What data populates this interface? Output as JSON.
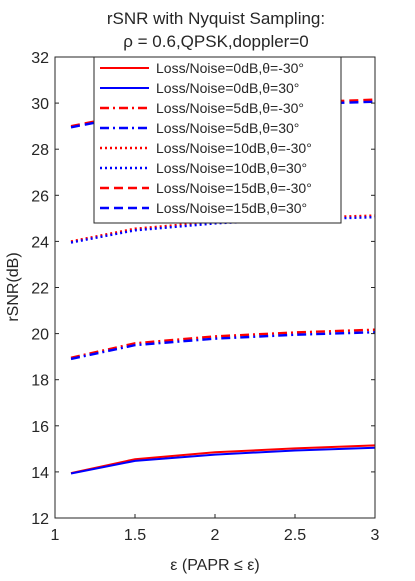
{
  "chart_data": {
    "type": "line",
    "title_lines": [
      "rSNR with Nyquist Sampling:",
      "ρ = 0.6,QPSK,doppler=0"
    ],
    "xlabel": "ε (PAPR ≤ ε)",
    "ylabel": "rSNR(dB)",
    "xlim": [
      1,
      3
    ],
    "ylim": [
      12,
      32
    ],
    "x_ticks": [
      1,
      1.5,
      2,
      2.5,
      3
    ],
    "x_tick_labels": [
      "1",
      "1.5",
      "2",
      "2.5",
      "3"
    ],
    "y_ticks": [
      12,
      14,
      16,
      18,
      20,
      22,
      24,
      26,
      28,
      30,
      32
    ],
    "y_tick_labels": [
      "12",
      "14",
      "16",
      "18",
      "20",
      "22",
      "24",
      "26",
      "28",
      "30",
      "32"
    ],
    "grid": false,
    "legend_position": "top-right",
    "x": [
      1.1,
      1.5,
      2,
      2.5,
      3
    ],
    "series": [
      {
        "name": "Loss/Noise=0dB,θ=-30°",
        "color": "#ff0000",
        "dash": "solid",
        "values": [
          13.95,
          14.55,
          14.85,
          15.02,
          15.15
        ]
      },
      {
        "name": "Loss/Noise=0dB,θ=30°",
        "color": "#0000ff",
        "dash": "solid",
        "values": [
          13.93,
          14.48,
          14.75,
          14.93,
          15.05
        ]
      },
      {
        "name": "Loss/Noise=5dB,θ=-30°",
        "color": "#ff0000",
        "dash": "dashdot",
        "values": [
          18.95,
          19.58,
          19.88,
          20.05,
          20.17
        ]
      },
      {
        "name": "Loss/Noise=5dB,θ=30°",
        "color": "#0000ff",
        "dash": "dashdot",
        "values": [
          18.9,
          19.5,
          19.78,
          19.95,
          20.06
        ]
      },
      {
        "name": "Loss/Noise=10dB,θ=-30°",
        "color": "#ff0000",
        "dash": "dotted",
        "values": [
          24.0,
          24.55,
          24.85,
          25.02,
          25.12
        ]
      },
      {
        "name": "Loss/Noise=10dB,θ=30°",
        "color": "#0000ff",
        "dash": "dotted",
        "values": [
          23.95,
          24.48,
          24.78,
          24.95,
          25.05
        ]
      },
      {
        "name": "Loss/Noise=15dB,θ=-30°",
        "color": "#ff0000",
        "dash": "dashed",
        "values": [
          29.0,
          29.55,
          29.85,
          30.02,
          30.15
        ]
      },
      {
        "name": "Loss/Noise=15dB,θ=30°",
        "color": "#0000ff",
        "dash": "dashed",
        "values": [
          28.95,
          29.48,
          29.78,
          29.95,
          30.06
        ]
      }
    ]
  }
}
